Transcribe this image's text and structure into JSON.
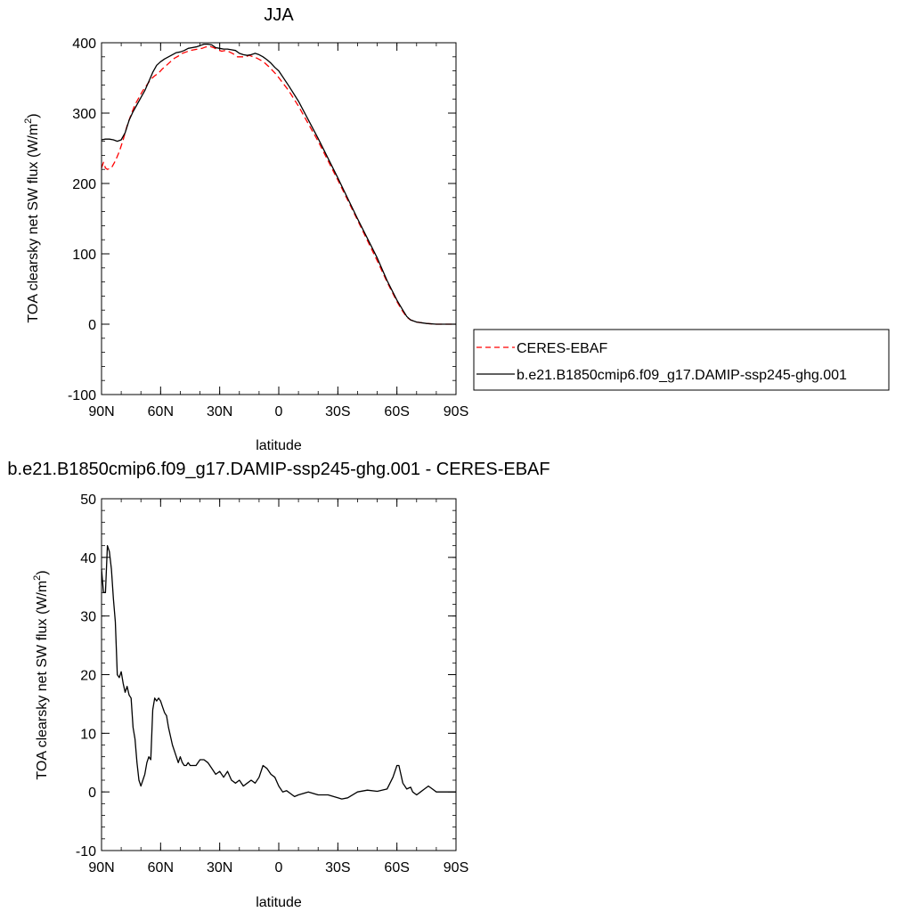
{
  "chart_data": [
    {
      "type": "line",
      "title": "JJA",
      "xlabel": "latitude",
      "ylabel": "TOA clearsky net SW flux (W/m",
      "ylabel_sup": "2",
      "ylabel_close": ")",
      "xlim": [
        90,
        -90
      ],
      "ylim": [
        -100,
        400
      ],
      "yticks": [
        -100,
        0,
        100,
        200,
        300,
        400
      ],
      "xticks": [
        90,
        60,
        30,
        0,
        -30,
        -60,
        -90
      ],
      "xtick_labels": [
        "90N",
        "60N",
        "30N",
        "0",
        "30S",
        "60S",
        "90S"
      ],
      "legend_position": "right",
      "series": [
        {
          "name": "CERES-EBAF",
          "color": "#ff0000",
          "dash": "dashed",
          "x": [
            90,
            89,
            88,
            87,
            85,
            83,
            81,
            79,
            77,
            75,
            73,
            71,
            69,
            67,
            65,
            63,
            61,
            59,
            57,
            55,
            53,
            51,
            49,
            47,
            45,
            43,
            41,
            39,
            37,
            35,
            33,
            31,
            29,
            27,
            25,
            23,
            21,
            19,
            17,
            15,
            13,
            11,
            9,
            7,
            5,
            3,
            1,
            -5,
            -10,
            -20,
            -30,
            -40,
            -50,
            -55,
            -60,
            -63,
            -65,
            -67,
            -70,
            -75,
            -80,
            -85,
            -90
          ],
          "y": [
            222,
            230,
            222,
            220,
            222,
            232,
            245,
            262,
            282,
            298,
            312,
            322,
            332,
            340,
            348,
            353,
            357,
            363,
            368,
            373,
            378,
            381,
            385,
            387,
            389,
            390,
            391,
            392,
            394,
            395,
            393,
            390,
            388,
            389,
            387,
            384,
            380,
            380,
            380,
            382,
            380,
            378,
            375,
            371,
            366,
            360,
            354,
            332,
            310,
            260,
            205,
            148,
            90,
            60,
            32,
            18,
            10,
            6,
            3,
            1,
            0,
            0,
            0
          ]
        },
        {
          "name": "b.e21.B1850cmip6.f09_g17.DAMIP-ssp245-ghg.001",
          "color": "#000000",
          "dash": "solid",
          "x": [
            90,
            88,
            86,
            84,
            82,
            80,
            78,
            76,
            74,
            72,
            70,
            68,
            66,
            64,
            62,
            60,
            58,
            56,
            54,
            52,
            50,
            48,
            46,
            44,
            42,
            40,
            38,
            36,
            34,
            32,
            30,
            28,
            26,
            24,
            22,
            20,
            18,
            16,
            14,
            12,
            10,
            8,
            6,
            4,
            2,
            0,
            -5,
            -10,
            -20,
            -30,
            -40,
            -50,
            -55,
            -60,
            -63,
            -65,
            -67,
            -70,
            -75,
            -80,
            -85,
            -90
          ],
          "y": [
            262,
            263,
            263,
            262,
            260,
            262,
            272,
            290,
            302,
            312,
            322,
            332,
            345,
            358,
            368,
            373,
            377,
            380,
            383,
            386,
            387,
            389,
            392,
            393,
            394,
            396,
            398,
            398,
            397,
            393,
            392,
            391,
            391,
            390,
            389,
            385,
            383,
            382,
            383,
            385,
            383,
            380,
            376,
            371,
            365,
            360,
            339,
            317,
            264,
            208,
            150,
            94,
            62,
            34,
            20,
            11,
            6,
            3,
            1,
            0,
            0,
            0
          ]
        }
      ]
    },
    {
      "type": "line",
      "title": "b.e21.B1850cmip6.f09_g17.DAMIP-ssp245-ghg.001 - CERES-EBAF",
      "xlabel": "latitude",
      "ylabel": "TOA clearsky net SW flux (W/m",
      "ylabel_sup": "2",
      "ylabel_close": ")",
      "xlim": [
        90,
        -90
      ],
      "ylim": [
        -10,
        50
      ],
      "yticks": [
        -10,
        0,
        10,
        20,
        30,
        40,
        50
      ],
      "xticks": [
        90,
        60,
        30,
        0,
        -30,
        -60,
        -90
      ],
      "xtick_labels": [
        "90N",
        "60N",
        "30N",
        "0",
        "30S",
        "60S",
        "90S"
      ],
      "series": [
        {
          "name": "",
          "color": "#000000",
          "dash": "solid",
          "x": [
            90,
            89,
            88,
            87,
            86,
            85,
            84,
            83,
            82,
            81,
            80,
            79,
            78,
            77,
            76,
            75,
            74,
            73,
            72,
            71,
            70,
            69,
            68,
            67,
            66,
            65,
            64,
            63,
            62,
            61,
            60,
            59,
            58,
            57,
            56,
            55,
            54,
            53,
            52,
            51,
            50,
            49,
            48,
            47,
            46,
            45,
            44,
            42,
            40,
            38,
            36,
            34,
            32,
            30,
            28,
            26,
            24,
            22,
            20,
            18,
            16,
            14,
            12,
            10,
            8,
            6,
            4,
            2,
            0,
            -2,
            -4,
            -6,
            -8,
            -10,
            -15,
            -20,
            -25,
            -30,
            -32,
            -35,
            -40,
            -45,
            -50,
            -55,
            -58,
            -60,
            -61,
            -62,
            -63,
            -65,
            -67,
            -68,
            -70,
            -72,
            -74,
            -76,
            -78,
            -80,
            -85,
            -90
          ],
          "y": [
            38,
            34,
            34,
            42,
            41,
            38,
            33,
            29,
            20,
            19.5,
            20.5,
            18.5,
            17,
            18,
            16.5,
            16,
            11,
            9,
            5,
            2,
            1,
            2,
            3,
            5,
            6,
            5.5,
            14,
            16,
            15.5,
            16,
            15.5,
            14.5,
            13.5,
            13,
            11,
            9.5,
            8,
            7,
            6,
            5,
            6,
            5,
            4.5,
            4.5,
            5,
            4.5,
            4.5,
            4.5,
            5.5,
            5.5,
            5,
            4,
            3,
            3.5,
            2.5,
            3.5,
            2,
            1.5,
            2,
            1,
            1.5,
            2,
            1.5,
            2.5,
            4.5,
            4,
            3,
            2.5,
            1,
            0,
            0.2,
            -0.3,
            -0.8,
            -0.5,
            0,
            -0.5,
            -0.5,
            -1,
            -1.2,
            -1,
            0,
            0.3,
            0.1,
            0.5,
            2.5,
            4.5,
            4.5,
            3,
            1.5,
            0.5,
            0.8,
            0,
            -0.5,
            0,
            0.5,
            1,
            0.5,
            0,
            0,
            0
          ]
        }
      ]
    }
  ]
}
